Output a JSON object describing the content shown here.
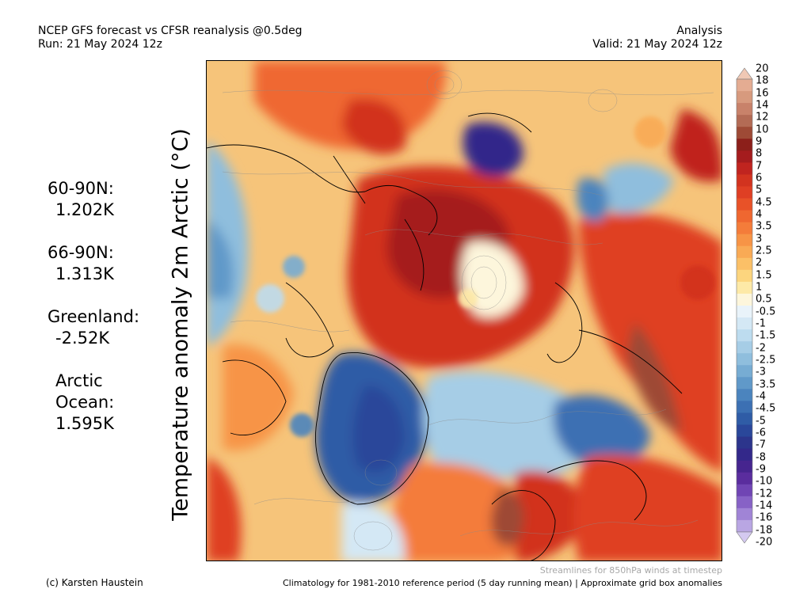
{
  "header": {
    "title": "NCEP GFS forecast vs CFSR reanalysis @0.5deg",
    "run": "Run: 21 May 2024 12z",
    "kind": "Analysis",
    "valid": "Valid: 21 May 2024 12z"
  },
  "stats": {
    "n60_label": "60-90N:",
    "n60_value": "1.202K",
    "n66_label": "66-90N:",
    "n66_value": "1.313K",
    "greenland_label": "Greenland:",
    "greenland_value": "-2.52K",
    "arctic_label_1": "Arctic",
    "arctic_label_2": "Ocean:",
    "arctic_value": "1.595K"
  },
  "axis_title": "Temperature anomaly 2m Arctic (°C)",
  "colorbar": {
    "labels": [
      "20",
      "18",
      "16",
      "14",
      "12",
      "10",
      "9",
      "8",
      "7",
      "6",
      "5",
      "4.5",
      "4",
      "3.5",
      "3",
      "2.5",
      "2",
      "1.5",
      "1",
      "0.5",
      "-0.5",
      "-1",
      "-1.5",
      "-2",
      "-2.5",
      "-3",
      "-3.5",
      "-4",
      "-4.5",
      "-5",
      "-6",
      "-7",
      "-8",
      "-9",
      "-10",
      "-12",
      "-14",
      "-16",
      "-18",
      "-20"
    ],
    "colors": [
      "#f0c8b4",
      "#e4ac92",
      "#d79a7e",
      "#c8826a",
      "#b36b55",
      "#9e4a36",
      "#8c1f1a",
      "#a51c1e",
      "#c0241f",
      "#d2331f",
      "#df3f24",
      "#e85228",
      "#ef6730",
      "#f47c3a",
      "#f79446",
      "#f9aa55",
      "#fbc067",
      "#fcd57e",
      "#fde9a7",
      "#fdf6dc",
      "#e9f3fa",
      "#d4e8f5",
      "#bddcef",
      "#a6cde6",
      "#8fbedd",
      "#77acd3",
      "#6099c9",
      "#4b84be",
      "#3c70b3",
      "#2f5ca6",
      "#2a479a",
      "#2c358c",
      "#33288a",
      "#46258f",
      "#5a2d9e",
      "#7045b4",
      "#8762c6",
      "#a084d6",
      "#b9a6e3",
      "#d4c9f0"
    ]
  },
  "footer": {
    "credit": "(c) Karsten Haustein",
    "streamline_note": "Streamlines for 850hPa winds at timestep",
    "climatology": "Climatology for 1981-2010 reference period (5 day running mean) | Approximate grid box anomalies"
  }
}
